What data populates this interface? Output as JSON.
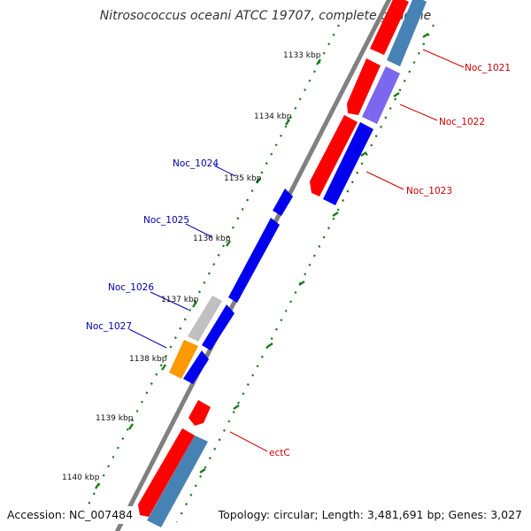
{
  "title": "Nitrosococcus oceani ATCC 19707, complete genome",
  "footer": {
    "accession": "Accession: NC_007484",
    "topology": "Topology: circular; Length: 3,481,691 bp; Genes: 3,027"
  },
  "ticks": [
    "1133 kbp",
    "1134 kbp",
    "1135 kbp",
    "1136 kbp",
    "1137 kbp",
    "1138 kbp",
    "1139 kbp",
    "1140 kbp"
  ],
  "gene_labels": {
    "noc1021": "Noc_1021",
    "noc1022": "Noc_1022",
    "noc1023": "Noc_1023",
    "noc1024": "Noc_1024",
    "noc1025": "Noc_1025",
    "noc1026": "Noc_1026",
    "noc1027": "Noc_1027",
    "ectc": "ectC"
  },
  "colors": {
    "backbone": "#808080",
    "cds_red": "#ff0000",
    "cds_blue": "#0000ee",
    "cds_steelblue": "#4682b4",
    "cds_purple": "#7b68ee",
    "cds_gray": "#c0c0c0",
    "cds_orange": "#ff9900",
    "tick_green": "#1a7a1a",
    "label_red": "#cc0000",
    "label_blue": "#0000aa"
  }
}
